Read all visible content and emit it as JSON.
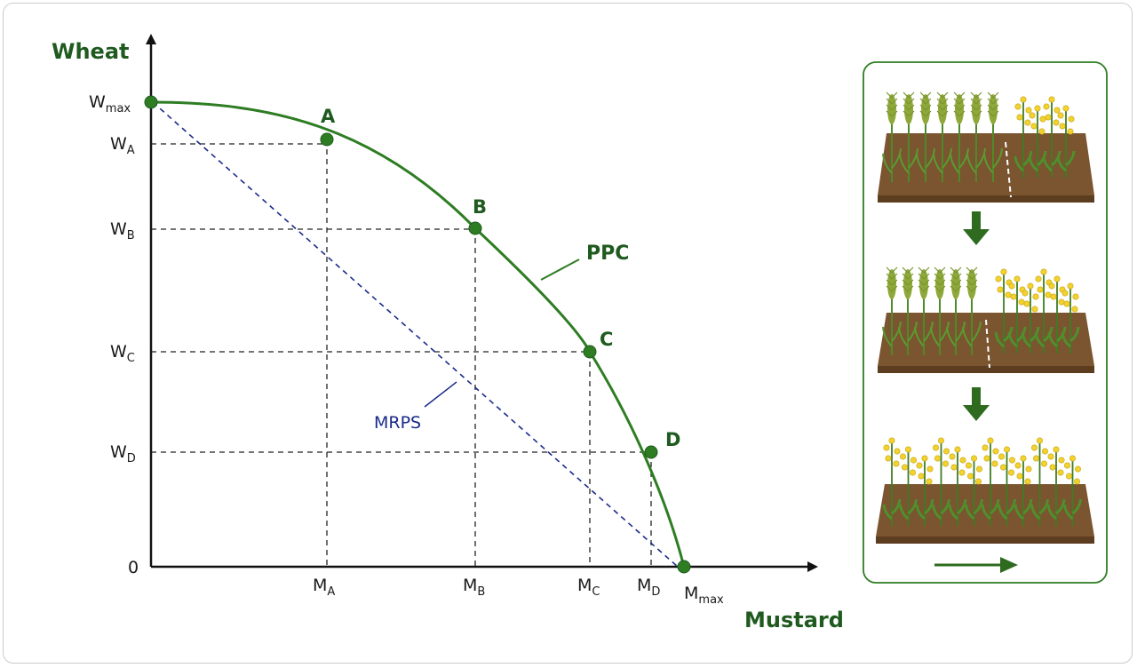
{
  "axes": {
    "y_title": "Wheat",
    "x_title": "Mustard",
    "origin": "0"
  },
  "y_ticks": [
    {
      "main": "W",
      "sub": "max"
    },
    {
      "main": "W",
      "sub": "A"
    },
    {
      "main": "W",
      "sub": "B"
    },
    {
      "main": "W",
      "sub": "C"
    },
    {
      "main": "W",
      "sub": "D"
    }
  ],
  "x_ticks": [
    {
      "main": "M",
      "sub": "A"
    },
    {
      "main": "M",
      "sub": "B"
    },
    {
      "main": "M",
      "sub": "C"
    },
    {
      "main": "M",
      "sub": "D"
    },
    {
      "main": "M",
      "sub": "max"
    }
  ],
  "points": [
    "A",
    "B",
    "C",
    "D"
  ],
  "curves": {
    "ppc_label": "PPC",
    "mrps_label": "MRPS"
  },
  "colors": {
    "ppc": "#2e7d23",
    "mrps": "#1a2a8a",
    "axis": "#111111",
    "panel_border": "#2e7d23",
    "arrow": "#2e6b1f",
    "wheat": "#8fa83a",
    "mustard_flower": "#f2d22e"
  },
  "illustration": {
    "panels": [
      "field-wheat-mostly",
      "field-half-half",
      "field-mustard-only"
    ],
    "direction_icon": "right-arrow-icon"
  }
}
